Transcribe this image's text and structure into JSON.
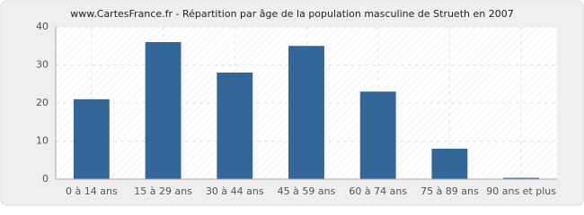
{
  "chart_data": {
    "type": "bar",
    "title": "www.CartesFrance.fr - Répartition par âge de la population masculine de Strueth en 2007",
    "categories": [
      "0 à 14 ans",
      "15 à 29 ans",
      "30 à 44 ans",
      "45 à 59 ans",
      "60 à 74 ans",
      "75 à 89 ans",
      "90 ans et plus"
    ],
    "values": [
      21,
      36,
      28,
      35,
      23,
      8,
      0
    ],
    "color": "#336699",
    "ylim": [
      0,
      40
    ],
    "yticks": [
      0,
      10,
      20,
      30,
      40
    ],
    "grid": true
  }
}
